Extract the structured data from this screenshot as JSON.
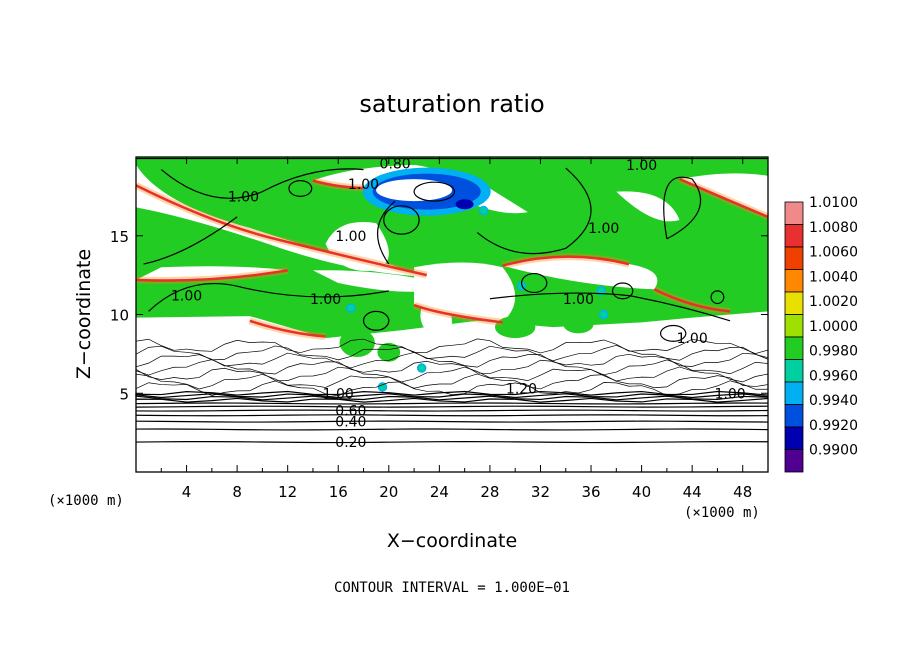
{
  "chart_data": {
    "type": "heatmap",
    "title": "saturation ratio",
    "xlabel": "X−coordinate",
    "ylabel": "Z−coordinate",
    "x_unit": "(×1000 m)",
    "y_unit": "(×1000 m)",
    "footer": "CONTOUR INTERVAL = 1.000E−01",
    "xlim": [
      0,
      50
    ],
    "ylim": [
      0,
      20
    ],
    "x_ticks": [
      4,
      8,
      12,
      16,
      20,
      24,
      28,
      32,
      36,
      40,
      44,
      48
    ],
    "y_ticks": [
      5,
      10,
      15
    ],
    "colorbar": {
      "labels": [
        "1.0100",
        "1.0080",
        "1.0060",
        "1.0040",
        "1.0020",
        "1.0000",
        "0.9980",
        "0.9960",
        "0.9940",
        "0.9920",
        "0.9900"
      ],
      "colors": [
        "#f08a8a",
        "#e83030",
        "#f04000",
        "#ff8800",
        "#e8e000",
        "#a0e000",
        "#22cc22",
        "#00d0a0",
        "#00b0f0",
        "#0050e0",
        "#0000b0",
        "#500090"
      ]
    },
    "contour_labels": [
      {
        "text": "0.80",
        "x": 20.5,
        "z": 19.6
      },
      {
        "text": "1.00",
        "x": 40.0,
        "z": 19.5
      },
      {
        "text": "1.00",
        "x": 18.0,
        "z": 18.3
      },
      {
        "text": "1.00",
        "x": 8.5,
        "z": 17.5
      },
      {
        "text": "1.00",
        "x": 17.0,
        "z": 15.0
      },
      {
        "text": "1.00",
        "x": 37.0,
        "z": 15.5
      },
      {
        "text": "1.00",
        "x": 4.0,
        "z": 11.2
      },
      {
        "text": "1.00",
        "x": 15.0,
        "z": 11.0
      },
      {
        "text": "1.00",
        "x": 35.0,
        "z": 11.0
      },
      {
        "text": "1.00",
        "x": 44.0,
        "z": 8.5
      },
      {
        "text": "1.00",
        "x": 16.0,
        "z": 5.0
      },
      {
        "text": "1.20",
        "x": 30.5,
        "z": 5.3
      },
      {
        "text": "1.00",
        "x": 47.0,
        "z": 5.0
      },
      {
        "text": "0.60",
        "x": 17.0,
        "z": 3.9
      },
      {
        "text": "0.40",
        "x": 17.0,
        "z": 3.2
      },
      {
        "text": "0.20",
        "x": 17.0,
        "z": 1.9
      }
    ]
  }
}
